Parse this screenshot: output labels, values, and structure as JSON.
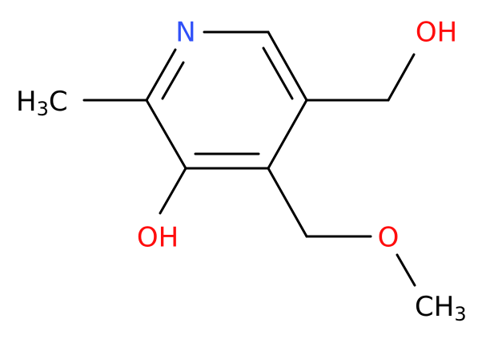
{
  "atoms": {
    "nitrogen": "N",
    "hydroxymethyl_oh": "OH",
    "ring_oh": "OH",
    "ether_o": "O",
    "methyl_left": {
      "h": "H",
      "sub": "3",
      "c": "C"
    },
    "methyl_right": {
      "c": "CH",
      "sub": "3"
    }
  }
}
